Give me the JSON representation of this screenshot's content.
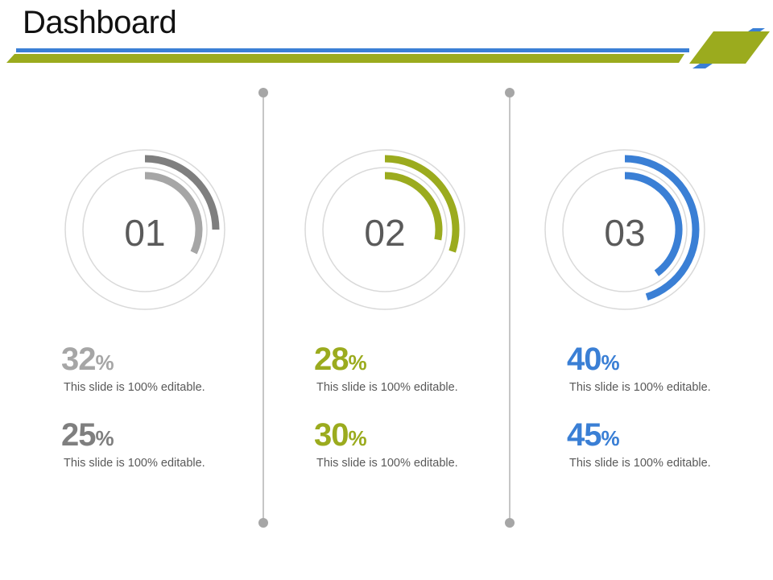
{
  "title": "Dashboard",
  "colors": {
    "gray_dark": "#7f7f7f",
    "gray_light": "#a6a6a6",
    "green": "#9bab1e",
    "blue": "#3a7fd5",
    "track": "#d9d9d9"
  },
  "panels": [
    {
      "label": "01",
      "outer_arc_percent": 25,
      "inner_arc_percent": 32,
      "outer_color": "#7f7f7f",
      "inner_color": "#a6a6a6",
      "stats": [
        {
          "value": "32",
          "unit": "%",
          "caption": "This slide is 100% editable.",
          "color": "#a6a6a6"
        },
        {
          "value": "25",
          "unit": "%",
          "caption": "This slide is 100% editable.",
          "color": "#7f7f7f"
        }
      ]
    },
    {
      "label": "02",
      "outer_arc_percent": 30,
      "inner_arc_percent": 28,
      "outer_color": "#9bab1e",
      "inner_color": "#9bab1e",
      "stats": [
        {
          "value": "28",
          "unit": "%",
          "caption": "This slide is 100% editable.",
          "color": "#9bab1e"
        },
        {
          "value": "30",
          "unit": "%",
          "caption": "This slide is 100% editable.",
          "color": "#9bab1e"
        }
      ]
    },
    {
      "label": "03",
      "outer_arc_percent": 45,
      "inner_arc_percent": 40,
      "outer_color": "#3a7fd5",
      "inner_color": "#3a7fd5",
      "stats": [
        {
          "value": "40",
          "unit": "%",
          "caption": "This slide is 100% editable.",
          "color": "#3a7fd5"
        },
        {
          "value": "45",
          "unit": "%",
          "caption": "This slide is 100% editable.",
          "color": "#3a7fd5"
        }
      ]
    }
  ]
}
